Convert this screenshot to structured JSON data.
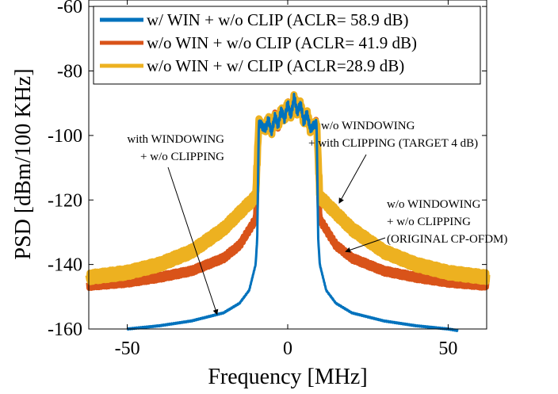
{
  "chart_data": {
    "type": "line",
    "xlabel": "Frequency [MHz]",
    "ylabel": "PSD [dBm/100 KHz]",
    "xlim": [
      -62,
      62
    ],
    "ylim": [
      -160,
      -58
    ],
    "xticks": [
      -50,
      0,
      50
    ],
    "xtick_labels": [
      "-50",
      "0",
      "50"
    ],
    "yticks": [
      -160,
      -140,
      -120,
      -100,
      -80,
      -60
    ],
    "ytick_labels": [
      "-160",
      "-140",
      "-120",
      "-100",
      "-80",
      "-60"
    ],
    "grid": false,
    "legend_position": "top",
    "colors": {
      "blue": "#0072BD",
      "red": "#D95319",
      "yellow": "#EDB120"
    },
    "series": [
      {
        "name": "w/ WIN + w/o CLIP (ACLR= 58.9 dB)",
        "color": "#0072BD",
        "x": [
          -50,
          -40,
          -30,
          -20,
          -15,
          -12,
          -10,
          -9.5,
          -9,
          9,
          9.5,
          10,
          12,
          15,
          20,
          30,
          40,
          50,
          53
        ],
        "y": [
          -160,
          -159,
          -157.5,
          -155,
          -152,
          -148,
          -140,
          -132,
          -96,
          -96,
          -132,
          -140,
          -148,
          -152,
          -155,
          -157.5,
          -159,
          -160,
          -160.5
        ]
      },
      {
        "name": "w/o WIN + w/o CLIP (ACLR= 41.9 dB)",
        "color": "#D95319",
        "x": [
          -62,
          -50,
          -40,
          -30,
          -20,
          -15,
          -10,
          -9,
          9,
          10,
          15,
          20,
          30,
          40,
          50,
          62
        ],
        "y": [
          -146.5,
          -145.5,
          -144,
          -142,
          -138,
          -134,
          -126,
          -96,
          -96,
          -126,
          -134,
          -138,
          -142,
          -144,
          -145.5,
          -146.5
        ]
      },
      {
        "name": "w/o WIN + w/ CLIP (ACLR=28.9 dB)",
        "color": "#EDB120",
        "x": [
          -62,
          -50,
          -40,
          -30,
          -20,
          -15,
          -10,
          -9,
          9,
          10,
          15,
          20,
          30,
          40,
          50,
          62
        ],
        "y": [
          -144,
          -142.5,
          -140,
          -136,
          -129,
          -124,
          -119,
          -96,
          -96,
          -119,
          -124,
          -129,
          -136,
          -140,
          -142.5,
          -144
        ]
      }
    ],
    "inband": {
      "x": [
        -9,
        -7,
        -6,
        -5,
        -4,
        -3,
        -2,
        -1,
        0,
        1,
        2,
        3,
        4,
        5,
        6,
        7,
        9
      ],
      "y": [
        -96,
        -98,
        -95,
        -99,
        -94,
        -97,
        -92,
        -95,
        -90,
        -94,
        -88,
        -93,
        -90,
        -96,
        -93,
        -98,
        -96
      ]
    },
    "annotations": [
      {
        "lines": [
          "with WINDOWING",
          "+ w/o CLIPPING"
        ],
        "arrow_to": [
          -22,
          -155.5
        ]
      },
      {
        "lines": [
          "w/o WINDOWING",
          "+ with CLIPPING (TARGET 4 dB)"
        ],
        "arrow_to": [
          16,
          -121
        ]
      },
      {
        "lines": [
          "w/o WINDOWING",
          "+ w/o CLIPPING",
          "(ORIGINAL CP-OFDM)"
        ],
        "arrow_to": [
          18,
          -136
        ]
      }
    ]
  }
}
